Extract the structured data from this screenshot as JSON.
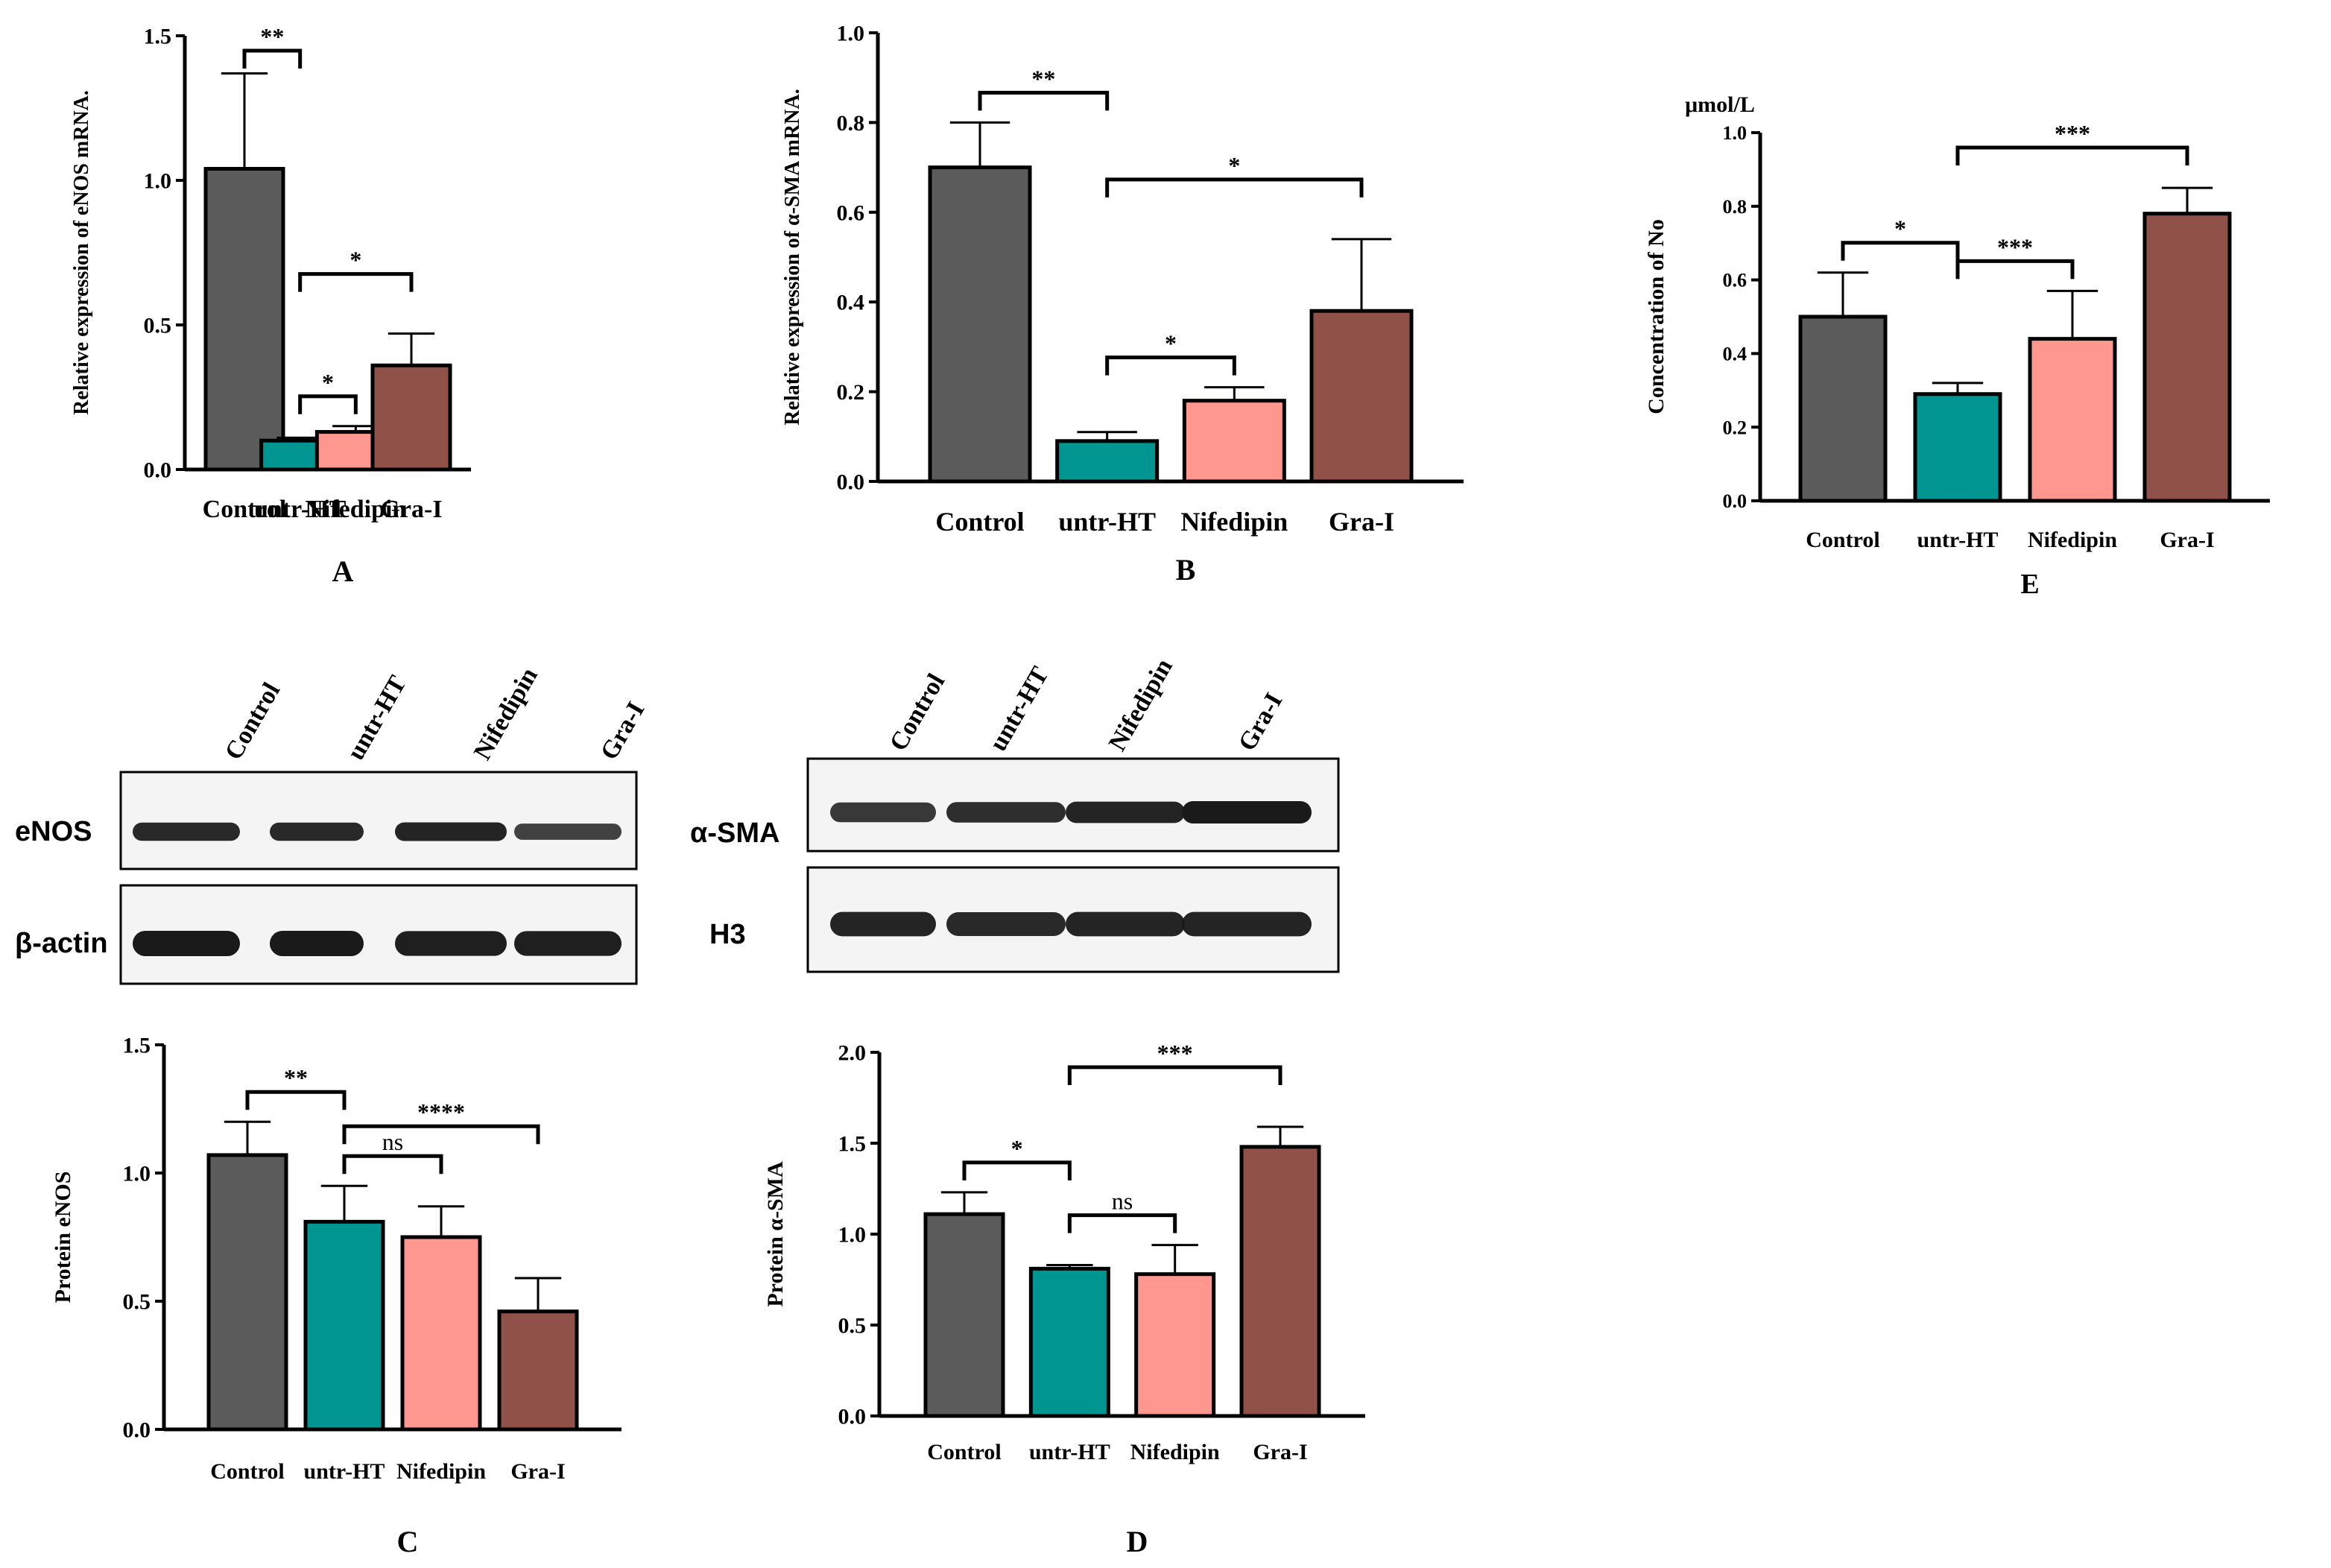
{
  "colors": {
    "bar_fills": [
      "#5b5b5b",
      "#009590",
      "#fd9790",
      "#905248"
    ],
    "axis": "#000000",
    "blot_band": "#1a1a1a",
    "blot_background": "#f4f4f4"
  },
  "chart_data": [
    {
      "id": "A",
      "type": "bar",
      "panel_label": "A",
      "categories": [
        "Control",
        "untr-HT",
        "Nifedipin",
        "Gra-I"
      ],
      "values": [
        1.04,
        0.1,
        0.13,
        0.36
      ],
      "errors": [
        0.33,
        0.01,
        0.02,
        0.11
      ],
      "ylabel": "Relative expression of eNOS mRNA.",
      "ylim": [
        0,
        1.5
      ],
      "yticks": [
        "0.0",
        "0.5",
        "1.0",
        "1.5"
      ],
      "significance": [
        {
          "from": 0,
          "to": 1,
          "label": "**"
        },
        {
          "from": 1,
          "to": 2,
          "label": "*"
        },
        {
          "from": 1,
          "to": 3,
          "label": "*"
        }
      ]
    },
    {
      "id": "B",
      "type": "bar",
      "panel_label": "B",
      "categories": [
        "Control",
        "untr-HT",
        "Nifedipin",
        "Gra-I"
      ],
      "values": [
        0.7,
        0.09,
        0.18,
        0.38
      ],
      "errors": [
        0.1,
        0.02,
        0.03,
        0.16
      ],
      "ylabel": "Relative expression of α-SMA mRNA.",
      "ylim": [
        0,
        1.0
      ],
      "yticks": [
        "0.0",
        "0.2",
        "0.4",
        "0.6",
        "0.8",
        "1.0"
      ],
      "significance": [
        {
          "from": 0,
          "to": 1,
          "label": "**"
        },
        {
          "from": 1,
          "to": 2,
          "label": "*"
        },
        {
          "from": 1,
          "to": 3,
          "label": "*"
        }
      ]
    },
    {
      "id": "E",
      "type": "bar",
      "panel_label": "E",
      "categories": [
        "Control",
        "untr-HT",
        "Nifedipin",
        "Gra-I"
      ],
      "values": [
        0.5,
        0.29,
        0.44,
        0.78
      ],
      "errors": [
        0.12,
        0.03,
        0.13,
        0.07
      ],
      "ylabel": "Concentration of No",
      "unit": "μmol/L",
      "ylim": [
        0,
        1.0
      ],
      "yticks": [
        "0.0",
        "0.2",
        "0.4",
        "0.6",
        "0.8",
        "1.0"
      ],
      "significance": [
        {
          "from": 0,
          "to": 1,
          "label": "*"
        },
        {
          "from": 1,
          "to": 2,
          "label": "***"
        },
        {
          "from": 1,
          "to": 3,
          "label": "***"
        }
      ]
    },
    {
      "id": "C",
      "type": "bar",
      "panel_label": "C",
      "categories": [
        "Control",
        "untr-HT",
        "Nifedipin",
        "Gra-I"
      ],
      "values": [
        1.07,
        0.81,
        0.75,
        0.46
      ],
      "errors": [
        0.13,
        0.14,
        0.12,
        0.13
      ],
      "ylabel": "Protein eNOS",
      "ylim": [
        0,
        1.5
      ],
      "yticks": [
        "0.0",
        "0.5",
        "1.0",
        "1.5"
      ],
      "significance": [
        {
          "from": 0,
          "to": 1,
          "label": "**"
        },
        {
          "from": 1,
          "to": 2,
          "label": "ns"
        },
        {
          "from": 1,
          "to": 3,
          "label": "****"
        }
      ]
    },
    {
      "id": "D",
      "type": "bar",
      "panel_label": "D",
      "categories": [
        "Control",
        "untr-HT",
        "Nifedipin",
        "Gra-I"
      ],
      "values": [
        1.11,
        0.81,
        0.78,
        1.48
      ],
      "errors": [
        0.12,
        0.02,
        0.16,
        0.11
      ],
      "ylabel": "Protein α-SMA",
      "ylim": [
        0,
        2.0
      ],
      "yticks": [
        "0.0",
        "0.5",
        "1.0",
        "1.5",
        "2.0"
      ],
      "significance": [
        {
          "from": 0,
          "to": 1,
          "label": "*"
        },
        {
          "from": 1,
          "to": 2,
          "label": "ns"
        },
        {
          "from": 1,
          "to": 3,
          "label": "***"
        }
      ]
    }
  ],
  "blots": [
    {
      "id": "blot-c",
      "lane_labels": [
        "Control",
        "untr-HT",
        "Nifedipin",
        "Gra-I"
      ],
      "rows": [
        {
          "label": "eNOS",
          "intensities": [
            0.85,
            0.85,
            0.9,
            0.6
          ]
        },
        {
          "label": "β-actin",
          "intensities": [
            1.0,
            1.0,
            0.95,
            0.95
          ]
        }
      ]
    },
    {
      "id": "blot-d",
      "lane_labels": [
        "Control",
        "untr-HT",
        "Nifedipin",
        "Gra-I"
      ],
      "rows": [
        {
          "label": "α-SMA",
          "intensities": [
            0.7,
            0.8,
            0.9,
            1.0
          ]
        },
        {
          "label": "H3",
          "intensities": [
            0.9,
            0.85,
            0.9,
            0.9
          ]
        }
      ]
    }
  ]
}
